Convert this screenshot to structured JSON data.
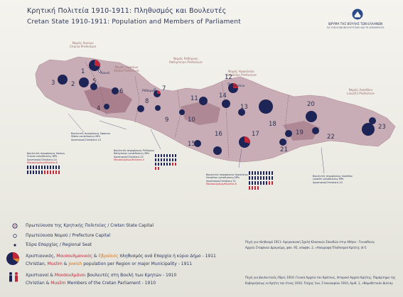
{
  "header": {
    "title_gr": "Κρητική Πολιτεία 1910-1911: Πληθυσμός και Βουλευτές",
    "title_en": "Cretan State 1910-1911: Population and Members of Parliament",
    "logo_text": "ΙΔΡΥΜΑ ΤΗΣ ΒΟΥΛΗΣ ΤΩΝ ΕΛΛΗΝΩΝ",
    "logo_sub": "ΓΙΑ ΤΟΝ ΚΟΙΝΟΒΟΥΛΕΥΤΙΣΜΟ ΚΑΙ ΤΗ ΔΗΜΟΚΡΑΤΙΑ"
  },
  "map": {
    "prefectures": [
      {
        "gr": "Νομός Χανίων",
        "en": "Chania Prefecture"
      },
      {
        "gr": "Νομός Σφακίων",
        "en": "Sfakia Prefecture"
      },
      {
        "gr": "Νομός Ρεθύμνου",
        "en": "Rethymnon Prefecture"
      },
      {
        "gr": "Νομός Ηρακλείου",
        "en": "Heraklion Prefecture"
      },
      {
        "gr": "Νομός Λασιθίου",
        "en": "Lassithi Prefecture"
      }
    ],
    "cities": {
      "chania": "Χανιά",
      "rethymno": "Ρέθυμνο",
      "heraklion": "Ηράκλειο"
    },
    "district_numbers": [
      "1",
      "2",
      "3",
      "4",
      "5",
      "6",
      "7",
      "8",
      "9",
      "10",
      "11",
      "12",
      "13",
      "14",
      "15",
      "16",
      "17",
      "18",
      "19",
      "20",
      "21",
      "22",
      "23"
    ],
    "seat_boxes": [
      {
        "gr": "Βουλευτές περιφέρειας Χανίων",
        "en": "Chania constituency MPs",
        "line1": "Χριστιανοί/Christians 24",
        "line2": "Μουσουλμάνοι/Muslims 6"
      },
      {
        "gr": "Βουλευτές περιφέρειας Σφακίων",
        "en": "Sfakia constituency MPs",
        "line1": "Χριστιανοί/Christians 13",
        "line2": ""
      },
      {
        "gr": "Βουλευτές περιφέρειας Ρεθύμνου",
        "en": "Rethymnon constituency MPs",
        "line1": "Χριστιανοί/Christians 22",
        "line2": "Μουσουλμάνοι/Muslims 4"
      },
      {
        "gr": "Βουλευτές περιφέρειας Ηρακλείου",
        "en": "Heraklion constituency MPs",
        "line1": "Χριστιανοί/Christians 31",
        "line2": "Μουσουλμάνοι/Muslims 6"
      },
      {
        "gr": "Βουλευτές περιφέρειας Λασιθίου",
        "en": "Lassithi constituency MPs",
        "line1": "Χριστιανοί/Christians 24",
        "line2": ""
      }
    ]
  },
  "legend": {
    "capital": "Πρωτεύουσα της Κρητικής Πολιτείας / Cretan State Capital",
    "prefecture_capital": "Πρωτεύουσα Νομού / Prefecture Capital",
    "regional_seat": "Έδρα Επαρχίας / Regional Seat",
    "population_gr_prefix": "Χριστιανικός, ",
    "population_gr_muslim": "Μουσουλμανικός",
    "population_gr_and": " & ",
    "population_gr_jewish": "Εβραϊκός",
    "population_gr_suffix": " πληθυσμός ανά Επαρχία ή κύριο Δήμο - 1911",
    "population_en_prefix": "Christian, ",
    "population_en_muslim": "Muslim",
    "population_en_and": " & ",
    "population_en_jewish": "Jewish",
    "population_en_suffix": " population per Region or major Municipality - 1911",
    "mps_gr_prefix": "Χριστιανοί & ",
    "mps_gr_muslim": "Μουσουλμάνοι",
    "mps_gr_suffix": " βουλευτές στη Βουλή των Κρητών - 1910",
    "mps_en_prefix": "Christian & ",
    "mps_en_muslim": "Muslim",
    "mps_en_suffix": " Members of the Cretan Parliament - 1910"
  },
  "sources": {
    "line1": "Πηγή για πληθυσμό 1911: Αμερικανική Σχολή Κλασικών Σπουδών στην Αθήνα - Γεννάδειος",
    "line2": "Αρχείο Στεφάνου Δραγούμη, φάκ. 95, υποφάκ. 2, «Απογραφή Πληθυσμού Κρήτης (4-5",
    "line3": "Πηγή για βουλευτικές έδρες 1910: Γενικά Αρχεία του Κράτους, Ιστορικό Αρχείο Κρήτης, Παράρτημα της",
    "line4": "Κυβερνήσεως εν Κρήτη του έτους 1910, Τεύχος 1ον, 5 Ιανουαρίου 1910, Αριθ. 1, «Νομοθετικόν Διάταγ"
  },
  "colors": {
    "christian": "#1d2456",
    "muslim": "#c0283a",
    "jewish": "#e0892f",
    "island": "#c8aab4",
    "ink": "#2a3558"
  }
}
